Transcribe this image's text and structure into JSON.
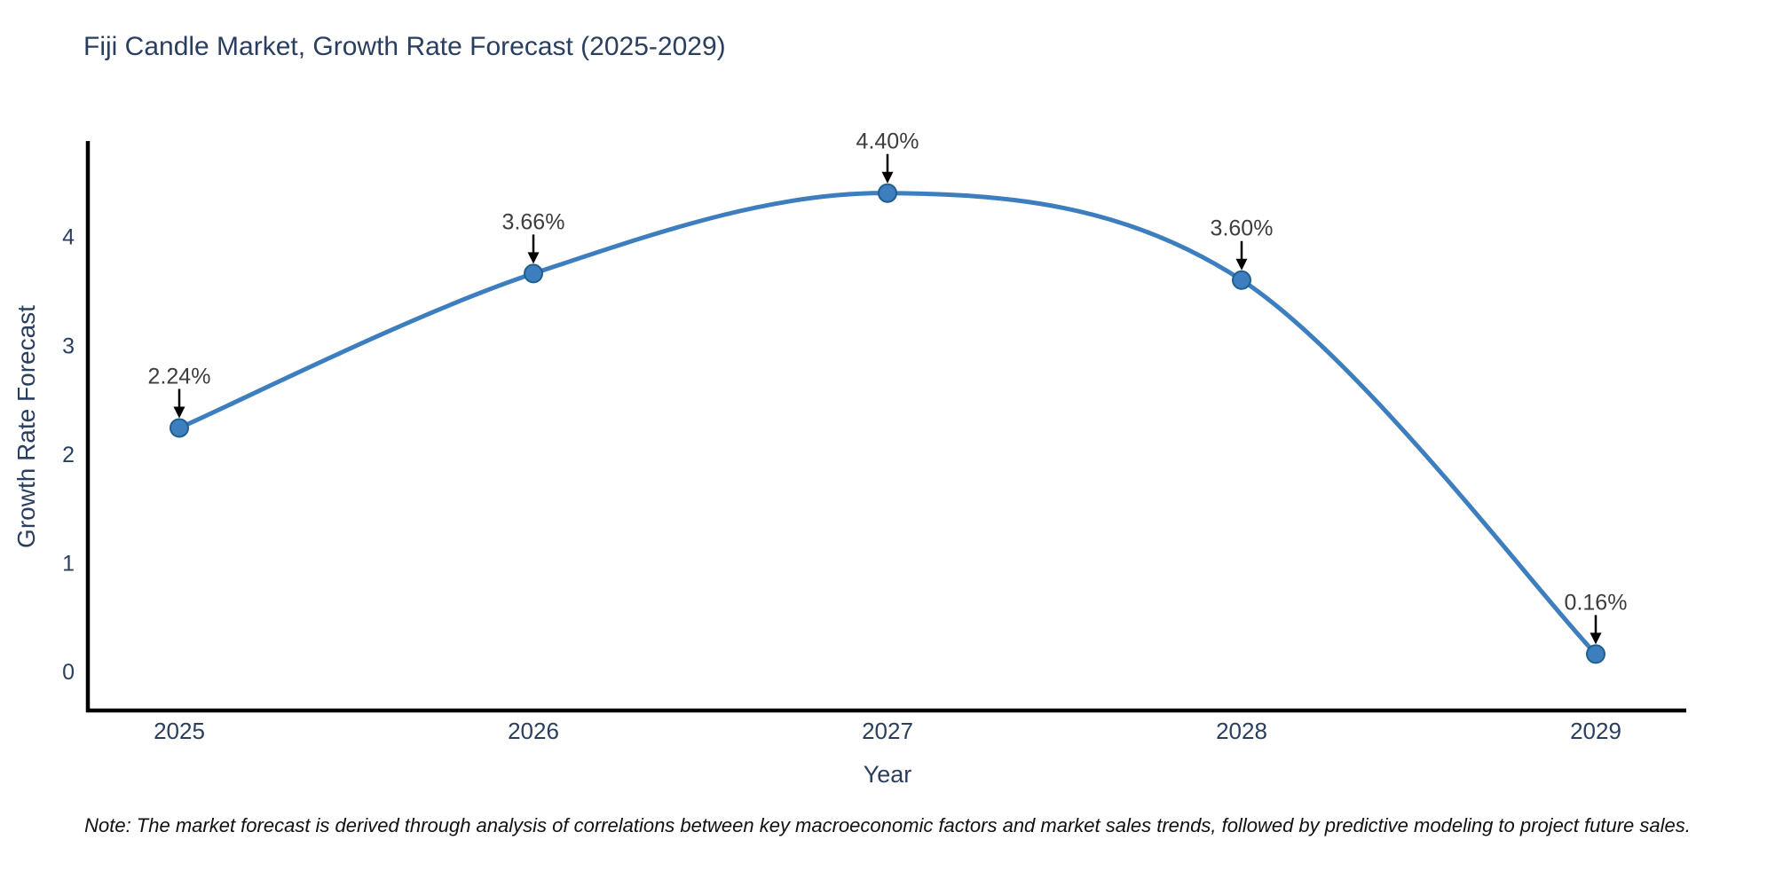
{
  "chart_data": {
    "type": "line",
    "title": "Fiji Candle Market, Growth Rate Forecast (2025-2029)",
    "xlabel": "Year",
    "ylabel": "Growth Rate Forecast",
    "series_name": "Growth Rate Forecast",
    "x": [
      2025,
      2026,
      2027,
      2028,
      2029
    ],
    "x_tick_labels": [
      "2025",
      "2026",
      "2027",
      "2028",
      "2029"
    ],
    "values": [
      2.24,
      3.66,
      4.4,
      3.6,
      0.16
    ],
    "point_labels": [
      "2.24%",
      "3.66%",
      "4.40%",
      "3.60%",
      "0.16%"
    ],
    "y_ticks": [
      0,
      1,
      2,
      3,
      4
    ],
    "ylim": [
      -0.36,
      4.88
    ],
    "line_shape": "spline",
    "grid": false,
    "legend_position": "none",
    "line_color": "#3d7ebf",
    "marker_color": "#3d7ebf",
    "marker_edge_color": "#1f5f8e",
    "axis_color": "#000000",
    "text_color": "#2a3f5f",
    "annotation_color": "#3d3d3d",
    "annotation_arrow_color": "#000000",
    "background_color": "#ffffff"
  },
  "note": "Note: The market forecast is derived through analysis of correlations between key macroeconomic factors and market sales trends, followed by predictive modeling to project future sales."
}
